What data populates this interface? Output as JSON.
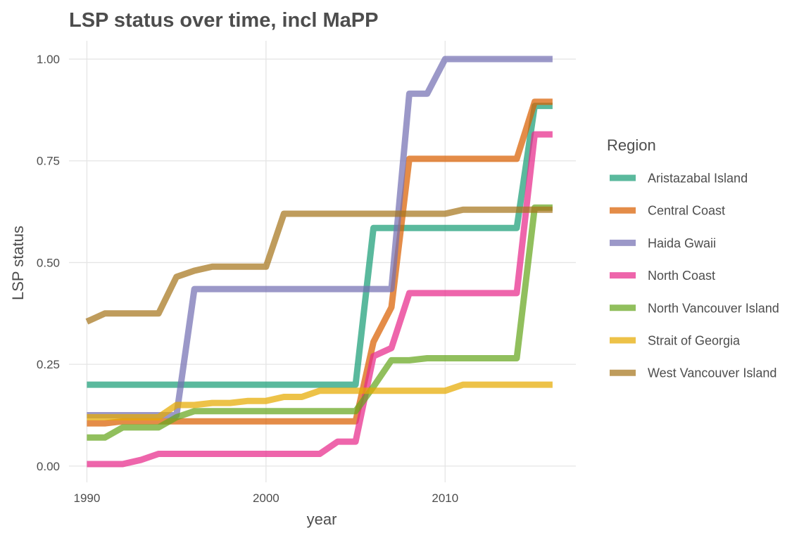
{
  "chart_data": {
    "type": "line",
    "title": "LSP status over time, incl MaPP",
    "xlabel": "year",
    "ylabel": "LSP status",
    "xlim": [
      1989,
      2017.3
    ],
    "ylim": [
      -0.04,
      1.045
    ],
    "x_ticks": [
      1990,
      2000,
      2010
    ],
    "x_tick_labels": [
      "1990",
      "2000",
      "2010"
    ],
    "y_ticks": [
      0,
      0.25,
      0.5,
      0.75,
      1
    ],
    "y_tick_labels": [
      "0.00",
      "0.25",
      "0.50",
      "0.75",
      "1.00"
    ],
    "grid": true,
    "legend": {
      "title": "Region",
      "position": "right"
    },
    "x": [
      1990,
      1991,
      1992,
      1993,
      1994,
      1995,
      1996,
      1997,
      1998,
      1999,
      2000,
      2001,
      2002,
      2003,
      2004,
      2005,
      2006,
      2007,
      2008,
      2009,
      2010,
      2011,
      2012,
      2013,
      2014,
      2015,
      2016
    ],
    "series": [
      {
        "name": "Aristazabal Island",
        "color": "#1b9e77",
        "values": [
          0.2,
          0.2,
          0.2,
          0.2,
          0.2,
          0.2,
          0.2,
          0.2,
          0.2,
          0.2,
          0.2,
          0.2,
          0.2,
          0.2,
          0.2,
          0.2,
          0.585,
          0.585,
          0.585,
          0.585,
          0.585,
          0.585,
          0.585,
          0.585,
          0.585,
          0.885,
          0.885
        ]
      },
      {
        "name": "Central Coast",
        "color": "#d95f02",
        "values": [
          0.105,
          0.105,
          0.11,
          0.11,
          0.11,
          0.11,
          0.11,
          0.11,
          0.11,
          0.11,
          0.11,
          0.11,
          0.11,
          0.11,
          0.11,
          0.11,
          0.305,
          0.39,
          0.755,
          0.755,
          0.755,
          0.755,
          0.755,
          0.755,
          0.755,
          0.895,
          0.895
        ]
      },
      {
        "name": "Haida Gwaii",
        "color": "#7570b3",
        "values": [
          0.125,
          0.125,
          0.125,
          0.125,
          0.125,
          0.125,
          0.435,
          0.435,
          0.435,
          0.435,
          0.435,
          0.435,
          0.435,
          0.435,
          0.435,
          0.435,
          0.435,
          0.435,
          0.915,
          0.915,
          1.0,
          1.0,
          1.0,
          1.0,
          1.0,
          1.0,
          1.0
        ]
      },
      {
        "name": "North Coast",
        "color": "#e7298a",
        "values": [
          0.005,
          0.005,
          0.005,
          0.015,
          0.03,
          0.03,
          0.03,
          0.03,
          0.03,
          0.03,
          0.03,
          0.03,
          0.03,
          0.03,
          0.06,
          0.06,
          0.27,
          0.29,
          0.425,
          0.425,
          0.425,
          0.425,
          0.425,
          0.425,
          0.425,
          0.815,
          0.815
        ]
      },
      {
        "name": "North Vancouver Island",
        "color": "#66a61e",
        "values": [
          0.07,
          0.07,
          0.095,
          0.095,
          0.095,
          0.12,
          0.135,
          0.135,
          0.135,
          0.135,
          0.135,
          0.135,
          0.135,
          0.135,
          0.135,
          0.135,
          0.195,
          0.26,
          0.26,
          0.265,
          0.265,
          0.265,
          0.265,
          0.265,
          0.265,
          0.635,
          0.635
        ]
      },
      {
        "name": "Strait of Georgia",
        "color": "#e6ab02",
        "values": [
          0.12,
          0.12,
          0.12,
          0.12,
          0.12,
          0.15,
          0.15,
          0.155,
          0.155,
          0.16,
          0.16,
          0.17,
          0.17,
          0.185,
          0.185,
          0.185,
          0.185,
          0.185,
          0.185,
          0.185,
          0.185,
          0.2,
          0.2,
          0.2,
          0.2,
          0.2,
          0.2
        ]
      },
      {
        "name": "West Vancouver Island",
        "color": "#a6761d",
        "values": [
          0.355,
          0.375,
          0.375,
          0.375,
          0.375,
          0.465,
          0.48,
          0.49,
          0.49,
          0.49,
          0.49,
          0.62,
          0.62,
          0.62,
          0.62,
          0.62,
          0.62,
          0.62,
          0.62,
          0.62,
          0.62,
          0.63,
          0.63,
          0.63,
          0.63,
          0.63,
          0.63
        ]
      }
    ]
  }
}
